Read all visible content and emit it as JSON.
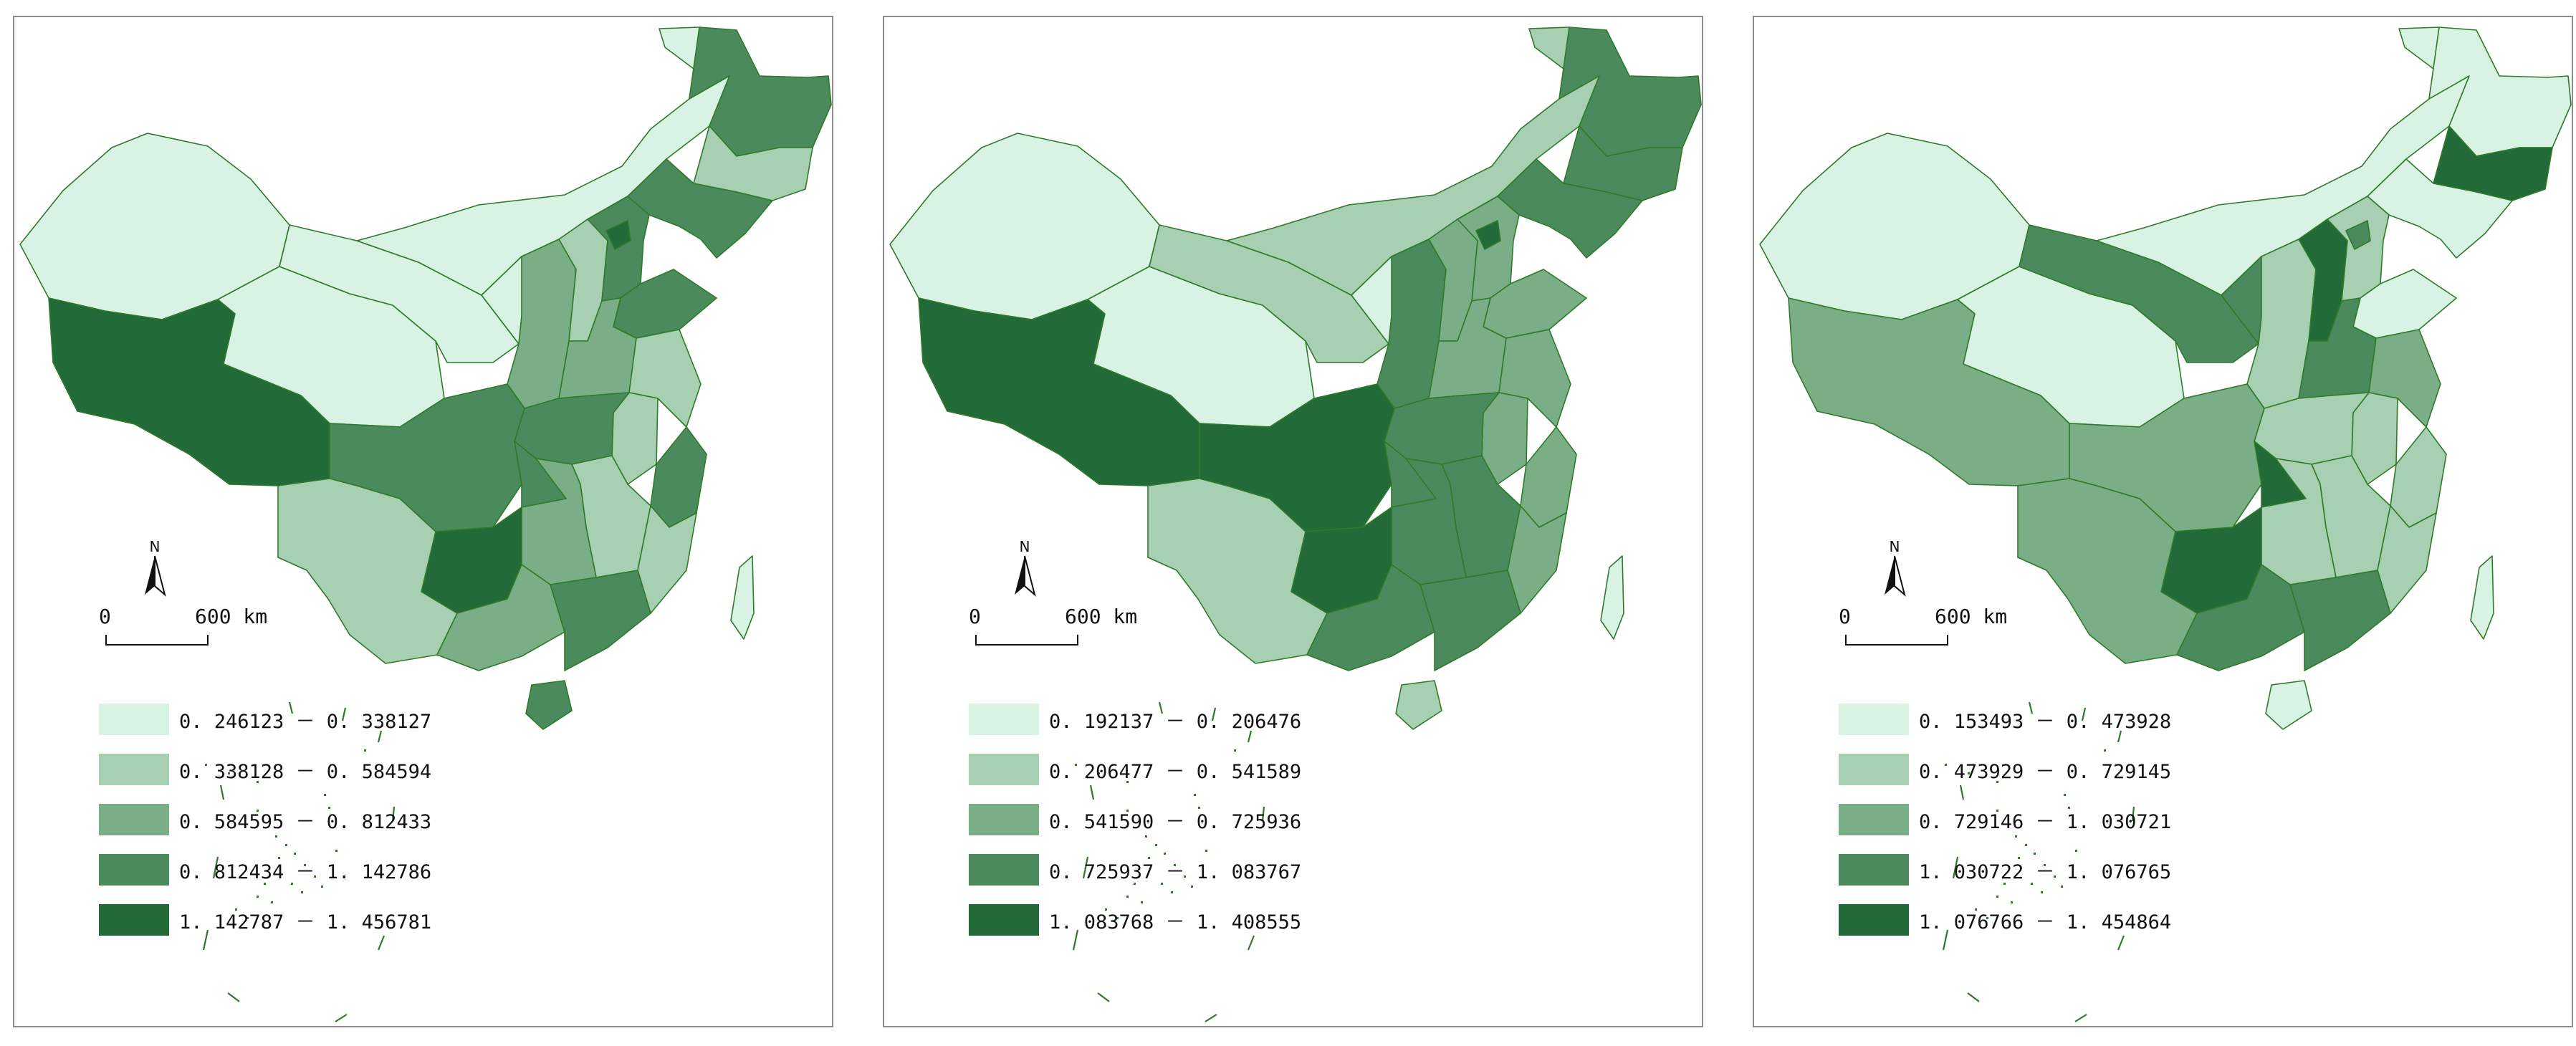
{
  "scale_bar": {
    "start": "0",
    "end": "600 km"
  },
  "north_arrow": {
    "label": "N"
  },
  "palette": [
    "#d8f2e4",
    "#a7cfb1",
    "#7aae86",
    "#4a8a5c",
    "#226a38"
  ],
  "border_color": "#2f7a2a",
  "panels": [
    {
      "legend": [
        {
          "label": "0. 246123 － 0. 338127",
          "color": "#d8f2e4"
        },
        {
          "label": "0. 338128 － 0. 584594",
          "color": "#a7cfb1"
        },
        {
          "label": "0. 584595 － 0. 812433",
          "color": "#7aae86"
        },
        {
          "label": "0. 812434 － 1. 142786",
          "color": "#4a8a5c"
        },
        {
          "label": "1. 142787 － 1. 456781",
          "color": "#226a38"
        }
      ]
    },
    {
      "legend": [
        {
          "label": "0. 192137 － 0. 206476",
          "color": "#d8f2e4"
        },
        {
          "label": "0. 206477 － 0. 541589",
          "color": "#a7cfb1"
        },
        {
          "label": "0. 541590 － 0. 725936",
          "color": "#7aae86"
        },
        {
          "label": "0. 725937 － 1. 083767",
          "color": "#4a8a5c"
        },
        {
          "label": "1. 083768 － 1. 408555",
          "color": "#226a38"
        }
      ]
    },
    {
      "legend": [
        {
          "label": "0. 153493 － 0. 473928",
          "color": "#d8f2e4"
        },
        {
          "label": "0. 473929 － 0. 729145",
          "color": "#a7cfb1"
        },
        {
          "label": "0. 729146 － 1. 030721",
          "color": "#7aae86"
        },
        {
          "label": "1. 030722 － 1. 076765",
          "color": "#4a8a5c"
        },
        {
          "label": "1. 076766 － 1. 454864",
          "color": "#226a38"
        }
      ]
    }
  ]
}
